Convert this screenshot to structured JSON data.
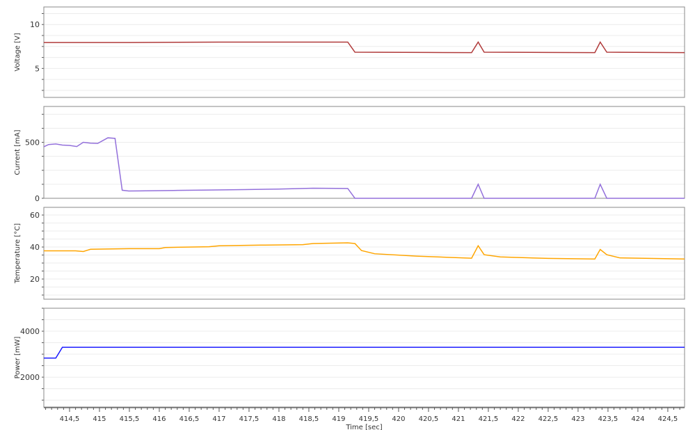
{
  "chart_data": [
    {
      "type": "line",
      "ylabel": "Voltage [V]",
      "ylim": [
        1.7,
        12
      ],
      "yticks": [
        5,
        10
      ],
      "color": "#b03a3a",
      "points": [
        [
          414.07,
          7.95
        ],
        [
          415.5,
          7.95
        ],
        [
          417,
          8.0
        ],
        [
          418.5,
          8.0
        ],
        [
          419.15,
          8.0
        ],
        [
          419.27,
          6.85
        ],
        [
          420.5,
          6.82
        ],
        [
          421.22,
          6.8
        ],
        [
          421.33,
          8.0
        ],
        [
          421.43,
          6.85
        ],
        [
          422.5,
          6.82
        ],
        [
          423.28,
          6.8
        ],
        [
          423.37,
          8.0
        ],
        [
          423.48,
          6.85
        ],
        [
          424.78,
          6.8
        ]
      ]
    },
    {
      "type": "line",
      "ylabel": "Current [mA]",
      "ylim": [
        0,
        820
      ],
      "yticks": [
        0,
        500
      ],
      "color": "#9370db",
      "points": [
        [
          414.07,
          460
        ],
        [
          414.15,
          480
        ],
        [
          414.27,
          485
        ],
        [
          414.38,
          475
        ],
        [
          414.5,
          472
        ],
        [
          414.62,
          462
        ],
        [
          414.73,
          500
        ],
        [
          414.85,
          492
        ],
        [
          414.97,
          490
        ],
        [
          415.14,
          540
        ],
        [
          415.26,
          535
        ],
        [
          415.38,
          72
        ],
        [
          415.49,
          65
        ],
        [
          415.66,
          66
        ],
        [
          416.24,
          70
        ],
        [
          416.83,
          74
        ],
        [
          417.41,
          78
        ],
        [
          417.99,
          82
        ],
        [
          418.57,
          90
        ],
        [
          419.15,
          88
        ],
        [
          419.27,
          0
        ],
        [
          421.22,
          0
        ],
        [
          421.33,
          125
        ],
        [
          421.43,
          0
        ],
        [
          423.28,
          0
        ],
        [
          423.37,
          125
        ],
        [
          423.48,
          0
        ],
        [
          424.78,
          0
        ]
      ]
    },
    {
      "type": "line",
      "ylabel": "Temperature [°C]",
      "ylim": [
        7.4,
        64.8
      ],
      "yticks": [
        20,
        40,
        60
      ],
      "color": "#ffa500",
      "points": [
        [
          414.07,
          37.6
        ],
        [
          414.6,
          37.6
        ],
        [
          414.73,
          37.2
        ],
        [
          414.85,
          38.6
        ],
        [
          415.5,
          39
        ],
        [
          416.0,
          39
        ],
        [
          416.1,
          39.7
        ],
        [
          416.83,
          40.2
        ],
        [
          417,
          40.8
        ],
        [
          417.7,
          41.2
        ],
        [
          418.4,
          41.5
        ],
        [
          418.57,
          42.2
        ],
        [
          419.15,
          42.6
        ],
        [
          419.27,
          42.2
        ],
        [
          419.38,
          37.8
        ],
        [
          419.6,
          35.8
        ],
        [
          420.3,
          34.3
        ],
        [
          421.22,
          33
        ],
        [
          421.33,
          40.8
        ],
        [
          421.43,
          35.2
        ],
        [
          421.7,
          33.8
        ],
        [
          422.5,
          32.9
        ],
        [
          423.28,
          32.5
        ],
        [
          423.37,
          38.5
        ],
        [
          423.48,
          35.2
        ],
        [
          423.7,
          33.2
        ],
        [
          424.78,
          32.5
        ]
      ]
    },
    {
      "type": "line",
      "ylabel": "Power [mW]",
      "ylim": [
        700,
        5000
      ],
      "yticks": [
        2000,
        4000
      ],
      "color": "#1a1aff",
      "points": [
        [
          414.07,
          2830
        ],
        [
          414.27,
          2830
        ],
        [
          414.38,
          3300
        ],
        [
          424.78,
          3300
        ]
      ]
    }
  ],
  "xaxis": {
    "label": "Time [sec]",
    "xlim": [
      414.07,
      424.78
    ],
    "ticks": [
      "414,5",
      "415",
      "415,5",
      "416",
      "416,5",
      "417",
      "417,5",
      "418",
      "418,5",
      "419",
      "419,5",
      "420",
      "420,5",
      "421",
      "421,5",
      "422",
      "422,5",
      "423",
      "423,5",
      "424",
      "424,5"
    ],
    "grid": true
  }
}
